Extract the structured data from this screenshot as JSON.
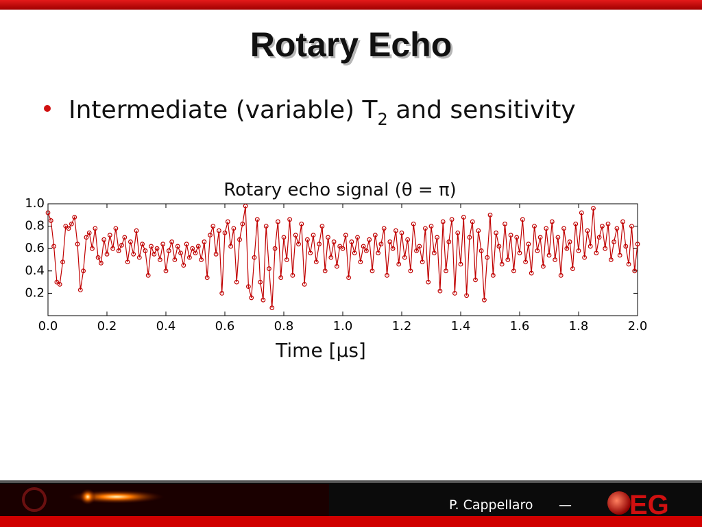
{
  "slide": {
    "title": "Rotary Echo",
    "bullet": {
      "text": "Intermediate (variable) T",
      "subscript": "2",
      "rest": " and sensitivity"
    }
  },
  "footer": {
    "author": "P. Cappellaro",
    "dash": "—",
    "logo": "EG"
  },
  "chart_data": {
    "type": "line",
    "title": "Rotary echo signal (θ = π)",
    "xlabel": "Time [μs]",
    "color": "#c00000",
    "x": [
      0,
      0.01,
      0.02,
      0.03,
      0.04,
      0.05,
      0.06,
      0.07,
      0.08,
      0.09,
      0.1,
      0.11,
      0.12,
      0.13,
      0.14,
      0.15,
      0.16,
      0.17,
      0.18,
      0.19,
      0.2,
      0.21,
      0.22,
      0.23,
      0.24,
      0.25,
      0.26,
      0.27,
      0.28,
      0.29,
      0.3,
      0.31,
      0.32,
      0.33,
      0.34,
      0.35,
      0.36,
      0.37,
      0.38,
      0.39,
      0.4,
      0.41,
      0.42,
      0.43,
      0.44,
      0.45,
      0.46,
      0.47,
      0.48,
      0.49,
      0.5,
      0.51,
      0.52,
      0.53,
      0.54,
      0.55,
      0.56,
      0.57,
      0.58,
      0.59,
      0.6,
      0.61,
      0.62,
      0.63,
      0.64,
      0.65,
      0.66,
      0.67,
      0.68,
      0.69,
      0.7,
      0.71,
      0.72,
      0.73,
      0.74,
      0.75,
      0.76,
      0.77,
      0.78,
      0.79,
      0.8,
      0.81,
      0.82,
      0.83,
      0.84,
      0.85,
      0.86,
      0.87,
      0.88,
      0.89,
      0.9,
      0.91,
      0.92,
      0.93,
      0.94,
      0.95,
      0.96,
      0.97,
      0.98,
      0.99,
      1,
      1.01,
      1.02,
      1.03,
      1.04,
      1.05,
      1.06,
      1.07,
      1.08,
      1.09,
      1.1,
      1.11,
      1.12,
      1.13,
      1.14,
      1.15,
      1.16,
      1.17,
      1.18,
      1.19,
      1.2,
      1.21,
      1.22,
      1.23,
      1.24,
      1.25,
      1.26,
      1.27,
      1.28,
      1.29,
      1.3,
      1.31,
      1.32,
      1.33,
      1.34,
      1.35,
      1.36,
      1.37,
      1.38,
      1.39,
      1.4,
      1.41,
      1.42,
      1.43,
      1.44,
      1.45,
      1.46,
      1.47,
      1.48,
      1.49,
      1.5,
      1.51,
      1.52,
      1.53,
      1.54,
      1.55,
      1.56,
      1.57,
      1.58,
      1.59,
      1.6,
      1.61,
      1.62,
      1.63,
      1.64,
      1.65,
      1.66,
      1.67,
      1.68,
      1.69,
      1.7,
      1.71,
      1.72,
      1.73,
      1.74,
      1.75,
      1.76,
      1.77,
      1.78,
      1.79,
      1.8,
      1.81,
      1.82,
      1.83,
      1.84,
      1.85,
      1.86,
      1.87,
      1.88,
      1.89,
      1.9,
      1.91,
      1.92,
      1.93,
      1.94,
      1.95,
      1.96,
      1.97,
      1.98,
      1.99,
      2
    ],
    "values": [
      0.92,
      0.85,
      0.62,
      0.3,
      0.28,
      0.48,
      0.8,
      0.78,
      0.82,
      0.88,
      0.64,
      0.23,
      0.4,
      0.7,
      0.74,
      0.6,
      0.78,
      0.52,
      0.47,
      0.68,
      0.55,
      0.72,
      0.6,
      0.78,
      0.58,
      0.63,
      0.7,
      0.48,
      0.66,
      0.55,
      0.76,
      0.52,
      0.64,
      0.58,
      0.36,
      0.62,
      0.55,
      0.6,
      0.5,
      0.64,
      0.4,
      0.58,
      0.66,
      0.5,
      0.62,
      0.56,
      0.45,
      0.64,
      0.52,
      0.6,
      0.56,
      0.62,
      0.5,
      0.66,
      0.34,
      0.72,
      0.8,
      0.55,
      0.76,
      0.2,
      0.74,
      0.84,
      0.62,
      0.78,
      0.3,
      0.68,
      0.82,
      0.98,
      0.26,
      0.16,
      0.52,
      0.86,
      0.3,
      0.14,
      0.8,
      0.42,
      0.07,
      0.6,
      0.84,
      0.34,
      0.7,
      0.5,
      0.86,
      0.36,
      0.72,
      0.64,
      0.82,
      0.28,
      0.68,
      0.56,
      0.72,
      0.48,
      0.64,
      0.8,
      0.4,
      0.7,
      0.52,
      0.66,
      0.44,
      0.62,
      0.6,
      0.72,
      0.34,
      0.66,
      0.56,
      0.7,
      0.48,
      0.62,
      0.58,
      0.68,
      0.4,
      0.72,
      0.56,
      0.64,
      0.78,
      0.36,
      0.66,
      0.6,
      0.76,
      0.46,
      0.74,
      0.52,
      0.68,
      0.4,
      0.82,
      0.58,
      0.62,
      0.48,
      0.78,
      0.3,
      0.8,
      0.56,
      0.7,
      0.22,
      0.84,
      0.4,
      0.66,
      0.86,
      0.2,
      0.74,
      0.46,
      0.88,
      0.18,
      0.7,
      0.84,
      0.32,
      0.76,
      0.58,
      0.14,
      0.52,
      0.9,
      0.36,
      0.74,
      0.62,
      0.46,
      0.82,
      0.5,
      0.72,
      0.4,
      0.7,
      0.56,
      0.86,
      0.48,
      0.64,
      0.38,
      0.8,
      0.58,
      0.7,
      0.44,
      0.78,
      0.54,
      0.84,
      0.5,
      0.7,
      0.36,
      0.78,
      0.6,
      0.66,
      0.42,
      0.82,
      0.58,
      0.92,
      0.52,
      0.76,
      0.62,
      0.96,
      0.56,
      0.7,
      0.8,
      0.6,
      0.82,
      0.5,
      0.66,
      0.78,
      0.54,
      0.84,
      0.62,
      0.46,
      0.8,
      0.4,
      0.64
    ],
    "xlim": [
      0,
      2
    ],
    "ylim": [
      0,
      1
    ],
    "xticks": [
      {
        "value": 0,
        "label": "0.0"
      },
      0.2,
      0.4,
      0.6,
      0.8,
      {
        "value": 1,
        "label": "1.0"
      },
      1.2,
      1.4,
      1.6,
      1.8,
      {
        "value": 2,
        "label": "2.0"
      }
    ],
    "yticks": [
      0.2,
      0.4,
      0.6,
      0.8,
      {
        "value": 1,
        "label": "1.0"
      }
    ],
    "grid": false
  }
}
